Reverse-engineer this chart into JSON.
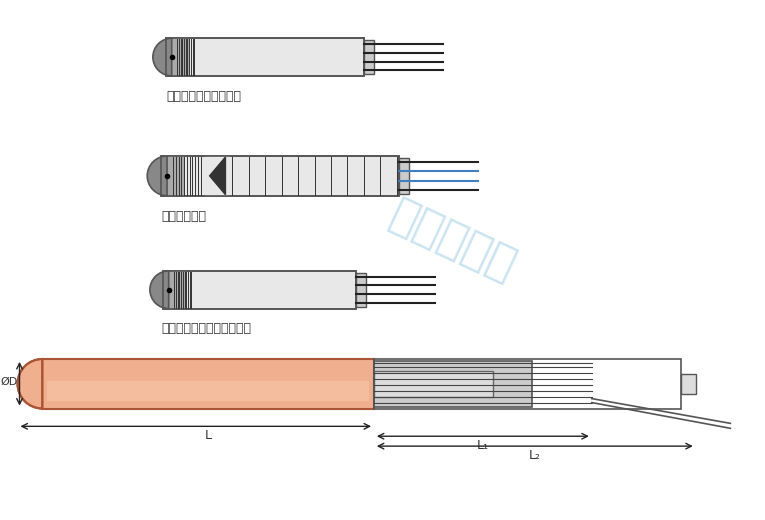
{
  "bg_color": "#ffffff",
  "label1": "热电偶在加热棒的顶部",
  "label2": "绝缘的热电偶",
  "label3": "绝缘热电偶在加热棒的顶部",
  "dim_L": "L",
  "dim_L1": "L₁",
  "dim_L2": "L₂",
  "dim_D": "ØD",
  "watermark": "苏泊特电热",
  "watermark_color": "#6ab0d8",
  "body_color_light": "#e8e8e8",
  "body_color_dark": "#c8c8c8",
  "copper_color_light": "#f0b090",
  "copper_color_dark": "#d07050",
  "stripe_color": "#333333",
  "wire_color": "#222222",
  "blue_wire_color": "#4080c0"
}
